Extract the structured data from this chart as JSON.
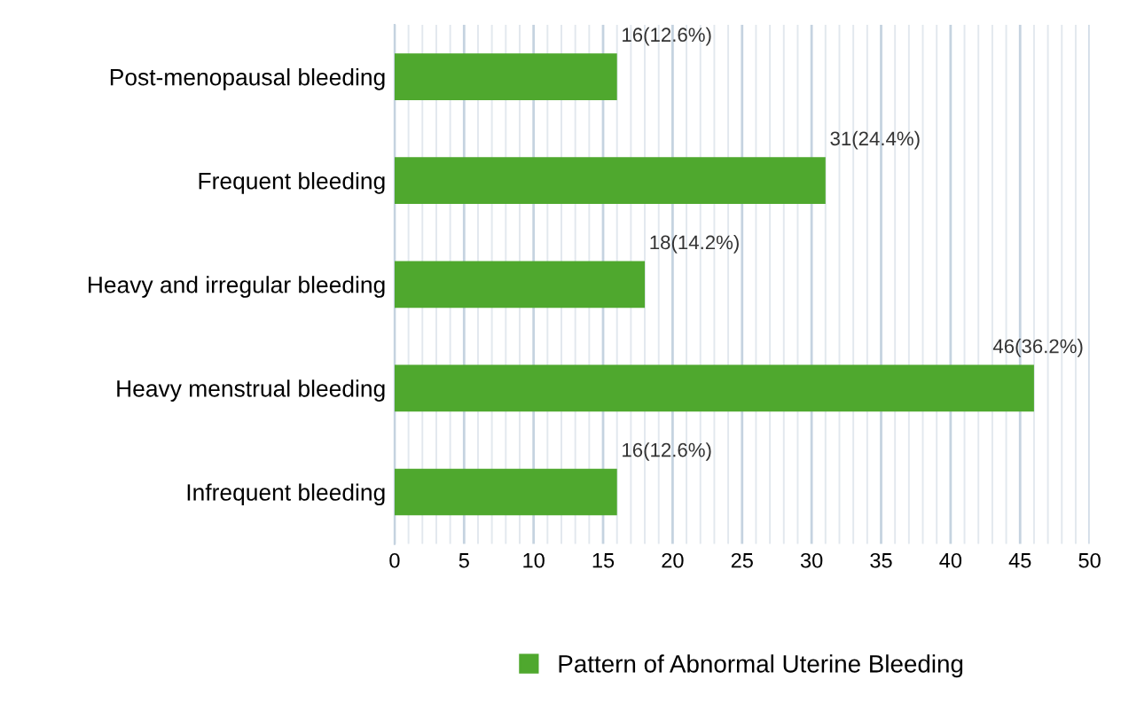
{
  "chart_data": {
    "type": "bar",
    "orientation": "horizontal",
    "categories": [
      "Post-menopausal bleeding",
      "Frequent bleeding",
      "Heavy and irregular bleeding",
      "Heavy menstrual bleeding",
      "Infrequent bleeding"
    ],
    "series": [
      {
        "name": "Pattern of Abnormal Uterine Bleeding",
        "color": "#4fa82e",
        "values": [
          16,
          31,
          18,
          46,
          16
        ],
        "value_labels": [
          "16(12.6%)",
          "31(24.4%)",
          "18(14.2%)",
          "46(36.2%)",
          "16(12.6%)"
        ]
      }
    ],
    "xlim": [
      0,
      50
    ],
    "xticks": [
      0,
      5,
      10,
      15,
      20,
      25,
      30,
      35,
      40,
      45,
      50
    ],
    "grid": "x",
    "legend": "bottom"
  }
}
